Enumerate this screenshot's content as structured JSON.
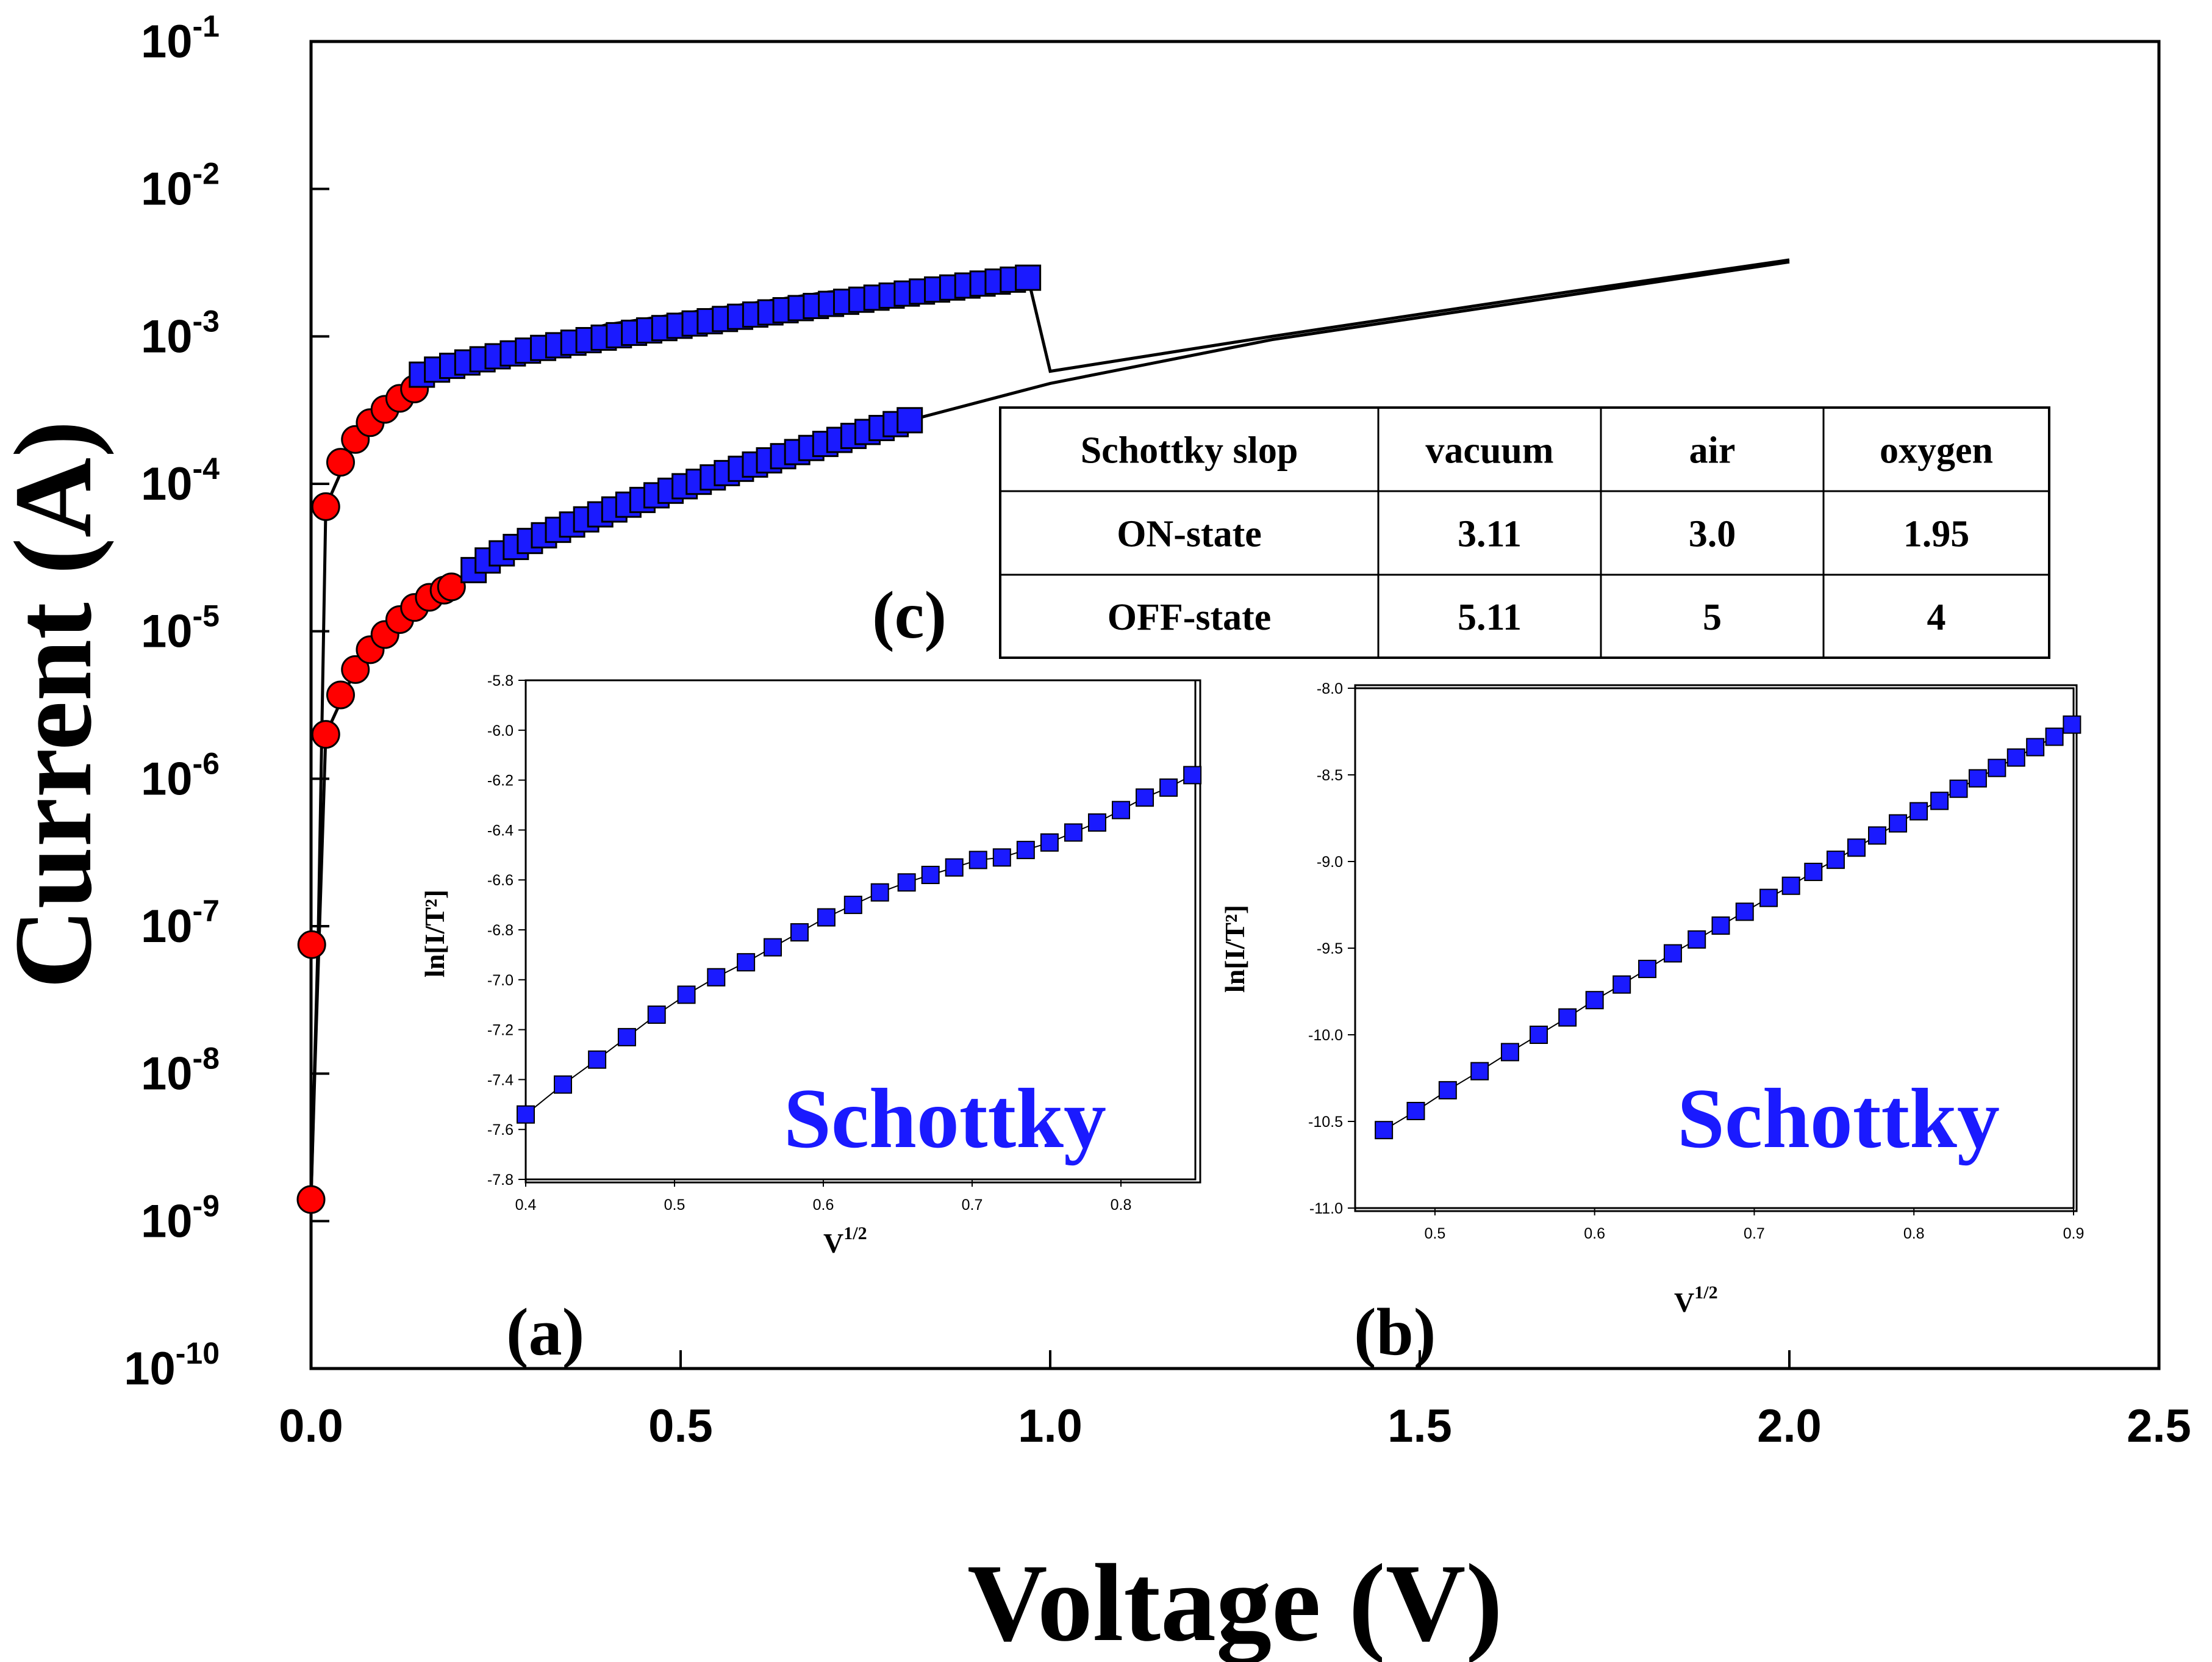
{
  "chart_data": [
    {
      "id": "main",
      "type": "scatter",
      "xlabel": "Voltage (V)",
      "ylabel": "Current (A)",
      "xlim": [
        0.0,
        2.5
      ],
      "ylog_range": [
        -10,
        -1
      ],
      "x_ticks": [
        "0.0",
        "0.5",
        "1.0",
        "1.5",
        "2.0",
        "2.5"
      ],
      "y_ticks": [
        {
          "base": "10",
          "exp": "-1"
        },
        {
          "base": "10",
          "exp": "-2"
        },
        {
          "base": "10",
          "exp": "-3"
        },
        {
          "base": "10",
          "exp": "-4"
        },
        {
          "base": "10",
          "exp": "-5"
        },
        {
          "base": "10",
          "exp": "-6"
        },
        {
          "base": "10",
          "exp": "-7"
        },
        {
          "base": "10",
          "exp": "-8"
        },
        {
          "base": "10",
          "exp": "-9"
        },
        {
          "base": "10",
          "exp": "-10"
        }
      ],
      "series": [
        {
          "marker": "circle",
          "color": "#ff0000",
          "points": [
            [
              0.0,
              1.4e-09
            ],
            [
              0.001,
              7.5e-08
            ],
            [
              0.02,
              7e-05
            ],
            [
              0.04,
              0.00014
            ],
            [
              0.06,
              0.0002
            ],
            [
              0.08,
              0.00026
            ],
            [
              0.1,
              0.00032
            ],
            [
              0.12,
              0.00038
            ],
            [
              0.14,
              0.00044
            ]
          ]
        },
        {
          "marker": "square",
          "color": "#1a1aff",
          "x_range": [
            0.15,
            0.97
          ],
          "count": 41,
          "y_start": 0.00055,
          "y_end": 0.0025
        },
        {
          "marker": "circle",
          "color": "#ff0000",
          "points": [
            [
              0.02,
              2e-06
            ],
            [
              0.04,
              3.7e-06
            ],
            [
              0.06,
              5.5e-06
            ],
            [
              0.08,
              7.5e-06
            ],
            [
              0.1,
              9.5e-06
            ],
            [
              0.12,
              1.2e-05
            ],
            [
              0.14,
              1.45e-05
            ],
            [
              0.16,
              1.7e-05
            ],
            [
              0.18,
              1.9e-05
            ],
            [
              0.19,
              2e-05
            ]
          ]
        },
        {
          "marker": "square",
          "color": "#1a1aff",
          "x_range": [
            0.22,
            0.81
          ],
          "count": 32,
          "y_start": 2.6e-05,
          "y_end": 0.00027
        }
      ],
      "curves": [
        {
          "name": "on-branch",
          "points": [
            [
              0.0,
              1.4e-09
            ],
            [
              0.01,
              1e-07
            ],
            [
              0.02,
              7e-05
            ],
            [
              0.06,
              0.0002
            ],
            [
              0.15,
              0.00055
            ],
            [
              0.4,
              0.0012
            ],
            [
              0.7,
              0.002
            ],
            [
              0.97,
              0.0025
            ],
            [
              1.0,
              0.00058
            ],
            [
              1.3,
              0.001
            ],
            [
              1.7,
              0.002
            ],
            [
              2.0,
              0.0033
            ]
          ]
        },
        {
          "name": "off-branch",
          "points": [
            [
              0.0,
              1.4e-09
            ],
            [
              0.005,
              1e-08
            ],
            [
              0.02,
              2e-06
            ],
            [
              0.06,
              5.5e-06
            ],
            [
              0.2,
              2.2e-05
            ],
            [
              0.5,
              0.0001
            ],
            [
              0.81,
              0.00027
            ],
            [
              1.0,
              0.00048
            ],
            [
              1.3,
              0.00095
            ],
            [
              1.7,
              0.0019
            ],
            [
              2.0,
              0.0032
            ]
          ]
        }
      ],
      "panel_label": "(c)"
    },
    {
      "id": "inset_a",
      "type": "line",
      "xlabel": "V",
      "xlabel_sup": "1/2",
      "ylabel": "ln[I/T²]",
      "xlim": [
        0.4,
        0.85
      ],
      "ylim": [
        -7.8,
        -5.8
      ],
      "x_ticks": [
        "0.4",
        "0.5",
        "0.6",
        "0.7",
        "0.8"
      ],
      "y_ticks": [
        "-5.8",
        "-6.0",
        "-6.2",
        "-6.4",
        "-6.6",
        "-6.8",
        "-7.0",
        "-7.2",
        "-7.4",
        "-7.6",
        "-7.8"
      ],
      "x": [
        0.4,
        0.425,
        0.448,
        0.468,
        0.488,
        0.508,
        0.528,
        0.548,
        0.566,
        0.584,
        0.602,
        0.62,
        0.638,
        0.656,
        0.672,
        0.688,
        0.704,
        0.72,
        0.736,
        0.752,
        0.768,
        0.784,
        0.8,
        0.816,
        0.832,
        0.848
      ],
      "y": [
        -7.54,
        -7.42,
        -7.32,
        -7.23,
        -7.14,
        -7.06,
        -6.99,
        -6.93,
        -6.87,
        -6.81,
        -6.75,
        -6.7,
        -6.65,
        -6.61,
        -6.58,
        -6.55,
        -6.52,
        -6.51,
        -6.48,
        -6.45,
        -6.41,
        -6.37,
        -6.32,
        -6.27,
        -6.23,
        -6.18
      ],
      "color": "#1a1aff",
      "annotation": "Schottky",
      "panel_label": "(a)"
    },
    {
      "id": "inset_b",
      "type": "line",
      "xlabel": "V",
      "xlabel_sup": "1/2",
      "ylabel": "ln[I/T²]",
      "xlim": [
        0.45,
        0.9
      ],
      "ylim": [
        -11.0,
        -8.0
      ],
      "x_ticks": [
        "0.5",
        "0.6",
        "0.7",
        "0.8",
        "0.9"
      ],
      "y_ticks": [
        "-8.0",
        "-8.5",
        "-9.0",
        "-9.5",
        "-10.0",
        "-10.5",
        "-11.0"
      ],
      "x": [
        0.468,
        0.488,
        0.508,
        0.528,
        0.547,
        0.565,
        0.583,
        0.6,
        0.617,
        0.633,
        0.649,
        0.664,
        0.679,
        0.694,
        0.709,
        0.723,
        0.737,
        0.751,
        0.764,
        0.777,
        0.79,
        0.803,
        0.816,
        0.828,
        0.84,
        0.852,
        0.864,
        0.876,
        0.888,
        0.899
      ],
      "y": [
        -10.55,
        -10.44,
        -10.32,
        -10.21,
        -10.1,
        -10.0,
        -9.9,
        -9.8,
        -9.71,
        -9.62,
        -9.53,
        -9.45,
        -9.37,
        -9.29,
        -9.21,
        -9.14,
        -9.06,
        -8.99,
        -8.92,
        -8.85,
        -8.78,
        -8.71,
        -8.65,
        -8.58,
        -8.52,
        -8.46,
        -8.4,
        -8.34,
        -8.28,
        -8.21
      ],
      "color": "#1a1aff",
      "annotation": "Schottky",
      "panel_label": "(b)"
    },
    {
      "id": "slope_table",
      "type": "table",
      "columns": [
        "Schottky slop",
        "vacuum",
        "air",
        "oxygen"
      ],
      "rows": [
        [
          "ON-state",
          "3.11",
          "3.0",
          "1.95"
        ],
        [
          "OFF-state",
          "5.11",
          "5",
          "4"
        ]
      ]
    }
  ]
}
